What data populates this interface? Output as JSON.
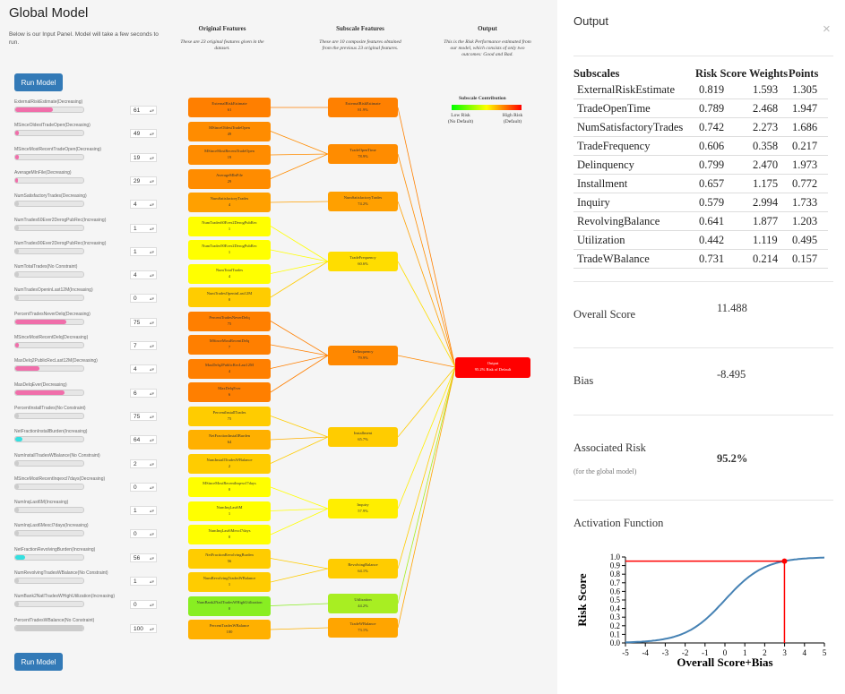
{
  "left_panel": {
    "title": "Global Model",
    "subtitle": "Below is our Input Panel. Model will take a few seconds to run.",
    "run_button_label": "Run Model",
    "columns": {
      "original_title": "Original Features",
      "original_desc": "These are 23 original features given in the dataset.",
      "subscale_title": "Subscale Features",
      "subscale_desc": "These are 10 composite features obtained from the previous 23 original features.",
      "output_title": "Output",
      "output_desc": "This is the Risk Performance estimated from our model, which consists of only two outcomes: Good and Bad."
    },
    "legend": {
      "title": "Subscale Contribution",
      "low_label": "Low Risk",
      "low_sub": "(No Default)",
      "high_label": "High Risk",
      "high_sub": "(Default)"
    },
    "features": [
      {
        "label": "ExternalRiskEstimate(Decreasing)",
        "value": "61",
        "fill": 0.55,
        "color": "#f06eaa"
      },
      {
        "label": "MSinceOldestTradeOpen(Decreasing)",
        "value": "49",
        "fill": 0.05,
        "color": "#f06eaa"
      },
      {
        "label": "MSinceMostRecentTradeOpen(Decreasing)",
        "value": "19",
        "fill": 0.05,
        "color": "#f06eaa"
      },
      {
        "label": "AverageMInFile(Decreasing)",
        "value": "29",
        "fill": 0.04,
        "color": "#f06eaa"
      },
      {
        "label": "NumSatisfactoryTrades(Decreasing)",
        "value": "4",
        "fill": 0.05,
        "color": "#cccccc"
      },
      {
        "label": "NumTrades60Ever2DerogPubRec(Increasing)",
        "value": "1",
        "fill": 0.05,
        "color": "#cccccc"
      },
      {
        "label": "NumTrades90Ever2DerogPubRec(Increasing)",
        "value": "1",
        "fill": 0.05,
        "color": "#cccccc"
      },
      {
        "label": "NumTotalTrades(No Constraint)",
        "value": "4",
        "fill": 0.05,
        "color": "#cccccc"
      },
      {
        "label": "NumTradesOpeninLast12M(Increasing)",
        "value": "0",
        "fill": 0.05,
        "color": "#cccccc"
      },
      {
        "label": "PercentTradesNeverDelq(Decreasing)",
        "value": "75",
        "fill": 0.75,
        "color": "#f06eaa"
      },
      {
        "label": "MSinceMostRecentDelq(Decreasing)",
        "value": "7",
        "fill": 0.05,
        "color": "#f06eaa"
      },
      {
        "label": "MaxDelq2PublicRecLast12M(Decreasing)",
        "value": "4",
        "fill": 0.35,
        "color": "#f06eaa"
      },
      {
        "label": "MaxDelqEver(Decreasing)",
        "value": "6",
        "fill": 0.72,
        "color": "#f06eaa"
      },
      {
        "label": "PercentInstallTrades(No Constraint)",
        "value": "75",
        "fill": 0.05,
        "color": "#cccccc"
      },
      {
        "label": "NetFractionInstallBurden(Increasing)",
        "value": "64",
        "fill": 0.1,
        "color": "#34e0e0"
      },
      {
        "label": "NumInstallTradesWBalance(No Constraint)",
        "value": "2",
        "fill": 0.05,
        "color": "#cccccc"
      },
      {
        "label": "MSinceMostRecentInqexcl7days(Decreasing)",
        "value": "0",
        "fill": 0.05,
        "color": "#cccccc"
      },
      {
        "label": "NumInqLast6M(Increasing)",
        "value": "1",
        "fill": 0.05,
        "color": "#cccccc"
      },
      {
        "label": "NumInqLast6Mexcl7days(Increasing)",
        "value": "0",
        "fill": 0.05,
        "color": "#cccccc"
      },
      {
        "label": "NetFractionRevolvingBurden(Increasing)",
        "value": "56",
        "fill": 0.15,
        "color": "#34e0e0"
      },
      {
        "label": "NumRevolvingTradesWBalance(No Constraint)",
        "value": "1",
        "fill": 0.05,
        "color": "#cccccc"
      },
      {
        "label": "NumBank2NatlTradesWHighUtilization(Increasing)",
        "value": "0",
        "fill": 0.05,
        "color": "#cccccc"
      },
      {
        "label": "PercentTradesWBalance(No Constraint)",
        "value": "100",
        "fill": 1.0,
        "color": "#cccccc"
      }
    ],
    "original_nodes": [
      {
        "name": "ExternalRiskEstimate",
        "value": "61",
        "color": "#ff7f00"
      },
      {
        "name": "MSinceOldestTradeOpen",
        "value": "49",
        "color": "#ff8c00"
      },
      {
        "name": "MSinceMostRecentTradeOpen",
        "value": "19",
        "color": "#ff8c00"
      },
      {
        "name": "AverageMInFile",
        "value": "29",
        "color": "#ff8c00"
      },
      {
        "name": "NumSatisfactoryTrades",
        "value": "4",
        "color": "#ffa000"
      },
      {
        "name": "NumTrades60Ever2DerogPubRec",
        "value": "1",
        "color": "#ffff00"
      },
      {
        "name": "NumTrades90Ever2DerogPubRec",
        "value": "1",
        "color": "#ffff00"
      },
      {
        "name": "NumTotalTrades",
        "value": "4",
        "color": "#ffff00"
      },
      {
        "name": "NumTradesOpeninLast12M",
        "value": "0",
        "color": "#ffcc00"
      },
      {
        "name": "PercentTradesNeverDelq",
        "value": "75",
        "color": "#ff7f00"
      },
      {
        "name": "MSinceMostRecentDelq",
        "value": "7",
        "color": "#ff7f00"
      },
      {
        "name": "MaxDelq2PublicRecLast12M",
        "value": "4",
        "color": "#ff7f00"
      },
      {
        "name": "MaxDelqEver",
        "value": "6",
        "color": "#ff7f00"
      },
      {
        "name": "PercentInstallTrades",
        "value": "75",
        "color": "#ffcc00"
      },
      {
        "name": "NetFractionInstallBurden",
        "value": "64",
        "color": "#ffb000"
      },
      {
        "name": "NumInstallTradesWBalance",
        "value": "2",
        "color": "#ffcc00"
      },
      {
        "name": "MSinceMostRecentInqexcl7days",
        "value": "0",
        "color": "#ffff00"
      },
      {
        "name": "NumInqLast6M",
        "value": "1",
        "color": "#ffff00"
      },
      {
        "name": "NumInqLast6Mexcl7days",
        "value": "0",
        "color": "#ffff00"
      },
      {
        "name": "NetFractionRevolvingBurden",
        "value": "56",
        "color": "#ffcc00"
      },
      {
        "name": "NumRevolvingTradesWBalance",
        "value": "1",
        "color": "#ffcc00"
      },
      {
        "name": "NumBank2NatlTradesWHighUtilization",
        "value": "0",
        "color": "#88ee22"
      },
      {
        "name": "PercentTradesWBalance",
        "value": "100",
        "color": "#ffb000"
      }
    ],
    "subscale_nodes": [
      {
        "name": "ExternalRiskEstimate",
        "value": "81.9%",
        "color": "#ff8000"
      },
      {
        "name": "TradeOpenTime",
        "value": "78.9%",
        "color": "#ff8c00"
      },
      {
        "name": "NumSatisfactoryTrades",
        "value": "74.2%",
        "color": "#ffa000"
      },
      {
        "name": "TradeFrequency",
        "value": "60.6%",
        "color": "#ffdd00"
      },
      {
        "name": "Delinquency",
        "value": "79.9%",
        "color": "#ff8800"
      },
      {
        "name": "Installment",
        "value": "65.7%",
        "color": "#ffcc00"
      },
      {
        "name": "Inquiry",
        "value": "57.9%",
        "color": "#ffee00"
      },
      {
        "name": "RevolvingBalance",
        "value": "64.1%",
        "color": "#ffcc00"
      },
      {
        "name": "Utilization",
        "value": "44.2%",
        "color": "#a8ee22"
      },
      {
        "name": "TradeWBalance",
        "value": "73.1%",
        "color": "#ffa500"
      }
    ],
    "output_node": {
      "name": "Output",
      "value": "95.2% Risk of Default",
      "color": "#ff0000"
    }
  },
  "right_panel": {
    "title": "Output",
    "close_symbol": "×",
    "table": {
      "headers": [
        "Subscales",
        "Risk Score",
        "Weights",
        "Points"
      ],
      "rows": [
        [
          "ExternalRiskEstimate",
          "0.819",
          "1.593",
          "1.305"
        ],
        [
          "TradeOpenTime",
          "0.789",
          "2.468",
          "1.947"
        ],
        [
          "NumSatisfactoryTrades",
          "0.742",
          "2.273",
          "1.686"
        ],
        [
          "TradeFrequency",
          "0.606",
          "0.358",
          "0.217"
        ],
        [
          "Delinquency",
          "0.799",
          "2.470",
          "1.973"
        ],
        [
          "Installment",
          "0.657",
          "1.175",
          "0.772"
        ],
        [
          "Inquiry",
          "0.579",
          "2.994",
          "1.733"
        ],
        [
          "RevolvingBalance",
          "0.641",
          "1.877",
          "1.203"
        ],
        [
          "Utilization",
          "0.442",
          "1.119",
          "0.495"
        ],
        [
          "TradeWBalance",
          "0.731",
          "0.214",
          "0.157"
        ]
      ]
    },
    "overall_score_label": "Overall Score",
    "overall_score_value": "11.488",
    "bias_label": "Bias",
    "bias_value": "-8.495",
    "associated_risk_label": "Associated Risk",
    "associated_risk_sub": "(for the global model)",
    "associated_risk_value": "95.2%",
    "activation_title": "Activation Function",
    "chart_data": {
      "type": "line",
      "xlabel": "Overall Score+Bias",
      "ylabel": "Risk Score",
      "xlim": [
        -5,
        5
      ],
      "ylim": [
        0,
        1
      ],
      "xticks": [
        "-5",
        "-4",
        "-3",
        "-2",
        "-1",
        "0",
        "1",
        "2",
        "3",
        "4",
        "5"
      ],
      "yticks": [
        "0.0",
        "0.1",
        "0.2",
        "0.3",
        "0.4",
        "0.5",
        "0.6",
        "0.7",
        "0.8",
        "0.9",
        "1.0"
      ],
      "curve": "sigmoid",
      "marker": {
        "x": 2.993,
        "y": 0.952
      },
      "line_color": "#4682b4",
      "marker_color": "#ff0000"
    }
  }
}
